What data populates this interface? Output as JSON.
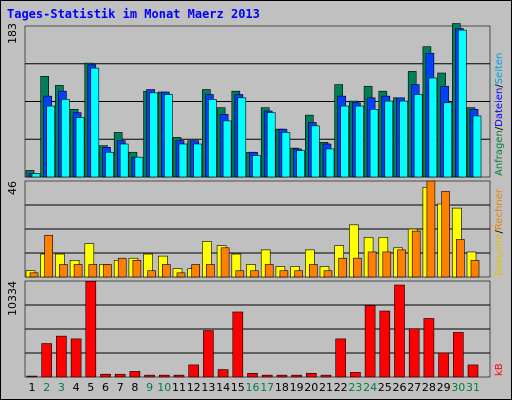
{
  "title": "Tages-Statistik im Monat Maerz 2013",
  "axis_max_labels": [
    "183",
    "46",
    "10334"
  ],
  "right_labels": {
    "top": [
      {
        "text": "Anfragen",
        "color": "#008040"
      },
      {
        "text": "/",
        "color": "#000000"
      },
      {
        "text": "Dateien",
        "color": "#0000ff"
      },
      {
        "text": "/",
        "color": "#000000"
      },
      {
        "text": "Seiten",
        "color": "#00a0e0"
      }
    ],
    "middle": [
      {
        "text": "Besuche",
        "color": "#e0c000"
      },
      {
        "text": "/",
        "color": "#000000"
      },
      {
        "text": "Rechner",
        "color": "#f08000"
      }
    ],
    "bottom": [
      {
        "text": "kB",
        "color": "#ff0000"
      }
    ]
  },
  "colors": {
    "requests": "#00805a",
    "files": "#0040ff",
    "pages": "#00ffff",
    "visits": "#ffff00",
    "hosts": "#ff8000",
    "kb": "#ff0000",
    "weekday": "#000000",
    "weekend": "#008040"
  },
  "chart_data": [
    {
      "type": "bar",
      "title": "Tages-Statistik im Monat Maerz 2013",
      "x": [
        "1",
        "2",
        "3",
        "4",
        "5",
        "6",
        "7",
        "8",
        "9",
        "10",
        "11",
        "12",
        "13",
        "14",
        "15",
        "16",
        "17",
        "18",
        "19",
        "20",
        "21",
        "22",
        "23",
        "24",
        "25",
        "26",
        "27",
        "28",
        "29",
        "30",
        "31"
      ],
      "weekend_days": [
        "2",
        "3",
        "9",
        "10",
        "16",
        "17",
        "23",
        "24",
        "30",
        "31"
      ],
      "ylim": [
        0,
        183
      ],
      "series": [
        {
          "name": "Anfragen",
          "values": [
            8,
            122,
            111,
            82,
            138,
            38,
            54,
            30,
            104,
            103,
            48,
            44,
            106,
            84,
            104,
            30,
            84,
            58,
            35,
            75,
            42,
            112,
            92,
            110,
            104,
            96,
            128,
            158,
            126,
            186,
            84
          ]
        },
        {
          "name": "Dateien",
          "values": [
            4,
            98,
            104,
            78,
            136,
            36,
            44,
            24,
            106,
            103,
            44,
            44,
            100,
            76,
            100,
            30,
            80,
            58,
            34,
            66,
            40,
            98,
            90,
            96,
            98,
            96,
            112,
            150,
            110,
            180,
            82
          ]
        },
        {
          "name": "Seiten",
          "values": [
            4,
            86,
            94,
            72,
            132,
            30,
            40,
            24,
            102,
            100,
            40,
            40,
            94,
            68,
            96,
            26,
            78,
            54,
            32,
            62,
            34,
            86,
            86,
            82,
            92,
            92,
            100,
            120,
            90,
            178,
            74
          ]
        }
      ]
    },
    {
      "type": "bar",
      "x": [
        "1",
        "2",
        "3",
        "4",
        "5",
        "6",
        "7",
        "8",
        "9",
        "10",
        "11",
        "12",
        "13",
        "14",
        "15",
        "16",
        "17",
        "18",
        "19",
        "20",
        "21",
        "22",
        "23",
        "24",
        "25",
        "26",
        "27",
        "28",
        "29",
        "30",
        "31"
      ],
      "ylim": [
        0,
        46
      ],
      "series": [
        {
          "name": "Besuche",
          "values": [
            3,
            11,
            11,
            8,
            16,
            6,
            8,
            9,
            11,
            10,
            4,
            4,
            17,
            15,
            11,
            6,
            13,
            5,
            5,
            13,
            5,
            15,
            25,
            19,
            19,
            14,
            23,
            43,
            35,
            33,
            12
          ]
        },
        {
          "name": "Rechner",
          "values": [
            2,
            20,
            6,
            6,
            6,
            6,
            9,
            8,
            3,
            6,
            2,
            6,
            6,
            14,
            3,
            3,
            6,
            3,
            3,
            6,
            3,
            9,
            9,
            12,
            12,
            13,
            22,
            46,
            41,
            18,
            8
          ]
        }
      ]
    },
    {
      "type": "bar",
      "x": [
        "1",
        "2",
        "3",
        "4",
        "5",
        "6",
        "7",
        "8",
        "9",
        "10",
        "11",
        "12",
        "13",
        "14",
        "15",
        "16",
        "17",
        "18",
        "19",
        "20",
        "21",
        "22",
        "23",
        "24",
        "25",
        "26",
        "27",
        "28",
        "29",
        "30",
        "31"
      ],
      "ylim": [
        0,
        10334
      ],
      "series": [
        {
          "name": "kB",
          "values": [
            100,
            3600,
            4400,
            4100,
            10300,
            300,
            300,
            600,
            200,
            200,
            200,
            1300,
            5000,
            800,
            7000,
            400,
            200,
            200,
            200,
            400,
            200,
            4100,
            500,
            7700,
            7100,
            9900,
            5200,
            6300,
            2600,
            4800,
            1300
          ]
        }
      ]
    }
  ]
}
